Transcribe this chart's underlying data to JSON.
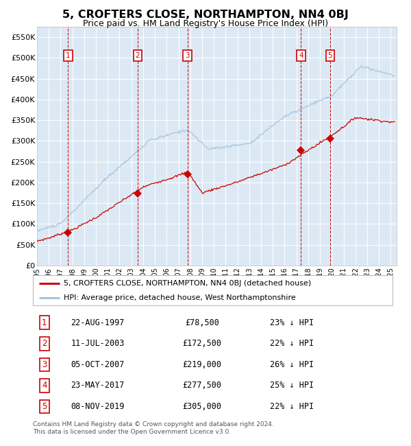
{
  "title": "5, CROFTERS CLOSE, NORTHAMPTON, NN4 0BJ",
  "subtitle": "Price paid vs. HM Land Registry's House Price Index (HPI)",
  "background_color": "#ffffff",
  "plot_bg_color": "#dce9f5",
  "hpi_color": "#a8c4e0",
  "price_color": "#cc0000",
  "grid_color": "#ffffff",
  "ylim": [
    0,
    575000
  ],
  "yticks": [
    0,
    50000,
    100000,
    150000,
    200000,
    250000,
    300000,
    350000,
    400000,
    450000,
    500000,
    550000
  ],
  "ytick_labels": [
    "£0",
    "£50K",
    "£100K",
    "£150K",
    "£200K",
    "£250K",
    "£300K",
    "£350K",
    "£400K",
    "£450K",
    "£500K",
    "£550K"
  ],
  "xmin": 1995.0,
  "xmax": 2025.5,
  "sale_dates_x": [
    1997.64,
    2003.53,
    2007.76,
    2017.39,
    2019.85
  ],
  "sale_prices_y": [
    78500,
    172500,
    219000,
    277500,
    305000
  ],
  "sale_labels": [
    "1",
    "2",
    "3",
    "4",
    "5"
  ],
  "legend_red_label": "5, CROFTERS CLOSE, NORTHAMPTON, NN4 0BJ (detached house)",
  "legend_blue_label": "HPI: Average price, detached house, West Northamptonshire",
  "table_data": [
    [
      "1",
      "22-AUG-1997",
      "£78,500",
      "23% ↓ HPI"
    ],
    [
      "2",
      "11-JUL-2003",
      "£172,500",
      "22% ↓ HPI"
    ],
    [
      "3",
      "05-OCT-2007",
      "£219,000",
      "26% ↓ HPI"
    ],
    [
      "4",
      "23-MAY-2017",
      "£277,500",
      "25% ↓ HPI"
    ],
    [
      "5",
      "08-NOV-2019",
      "£305,000",
      "22% ↓ HPI"
    ]
  ],
  "footer": "Contains HM Land Registry data © Crown copyright and database right 2024.\nThis data is licensed under the Open Government Licence v3.0."
}
